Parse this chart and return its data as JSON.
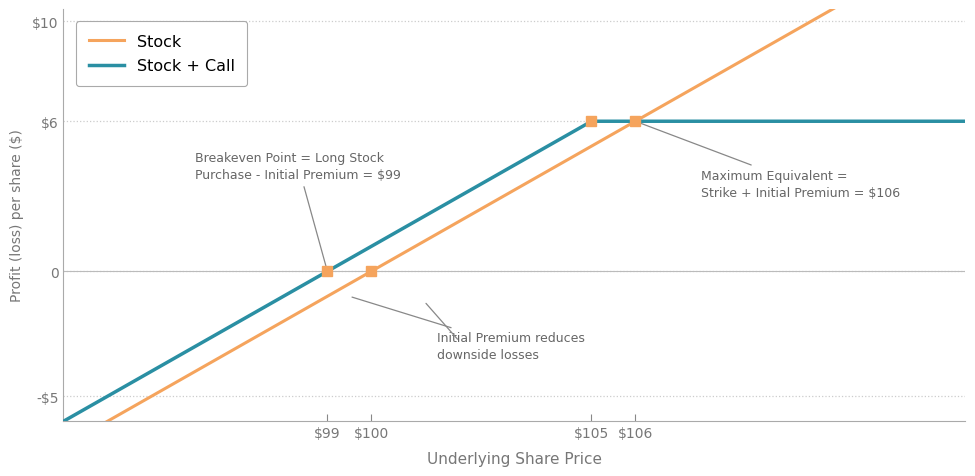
{
  "xlabel": "Underlying Share Price",
  "ylabel": "Profit (loss) per share ($)",
  "stock_color": "#F5A45D",
  "call_color": "#2A8FA3",
  "background_color": "#FFFFFF",
  "ylim": [
    -6.0,
    10.5
  ],
  "xlim": [
    93.0,
    113.5
  ],
  "yticks": [
    -5,
    0,
    6,
    10
  ],
  "ytick_labels": [
    "-$5",
    "0",
    "$6",
    "$10"
  ],
  "xticks": [
    99,
    100,
    105,
    106
  ],
  "xtick_labels": [
    "$99",
    "$100",
    "$105",
    "$106"
  ],
  "grid_color": "#CCCCCC",
  "stock_purchase": 100,
  "call_premium": 1,
  "strike": 105,
  "annotation_color": "#666666",
  "marker_color": "#F5A45D",
  "legend_stock": "Stock",
  "legend_call": "Stock + Call",
  "annot1_text": "Breakeven Point = Long Stock\nPurchase - Initial Premium = $99",
  "annot2_text": "Maximum Equivalent =\nStrike + Initial Premium = $106",
  "annot3_text": "Initial Premium reduces\ndownside losses"
}
